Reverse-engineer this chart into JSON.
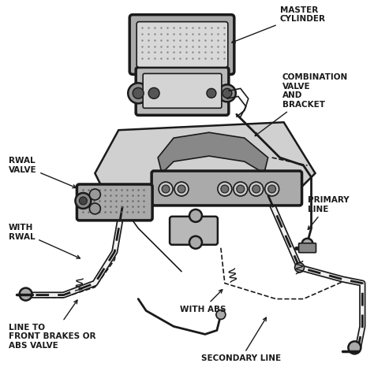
{
  "bg_color": "#ffffff",
  "line_color": "#1a1a1a",
  "gray_light": "#cccccc",
  "gray_mid": "#999999",
  "gray_dark": "#555555",
  "figsize": [
    4.74,
    4.66
  ],
  "dpi": 100,
  "labels": {
    "master_cylinder": "MASTER\nCYLINDER",
    "combination_valve": "COMBINATION\nVALVE\nAND\nBRACKET",
    "rwal_valve": "RWAL\nVALVE",
    "primary_line": "PRIMARY\nLINE",
    "with_rwal": "WITH\nRWAL",
    "with_abs": "WITH ABS",
    "line_to_front": "LINE TO\nFRONT BRAKES OR\nABS VALVE",
    "secondary_line": "SECONDARY LINE"
  }
}
